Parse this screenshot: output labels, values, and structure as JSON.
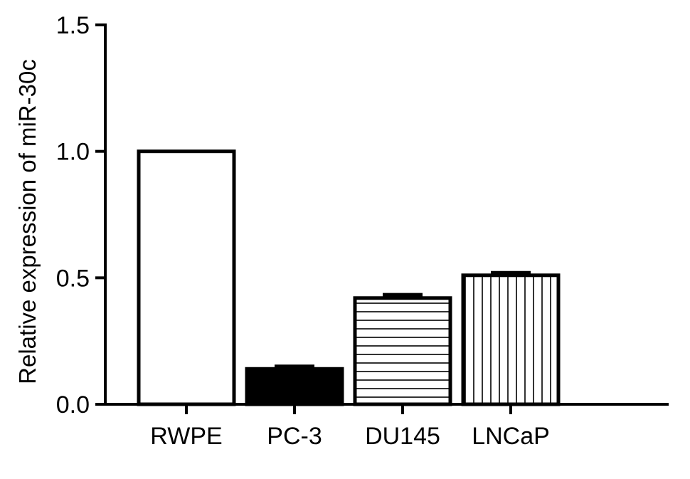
{
  "chart_data": {
    "type": "bar",
    "title": "",
    "xlabel": "",
    "ylabel": "Relative expression of miR-30c",
    "ylim": [
      0,
      1.5
    ],
    "yticks": [
      0.0,
      0.5,
      1.0,
      1.5
    ],
    "ytick_labels": [
      "0.0",
      "0.5",
      "1.0",
      "1.5"
    ],
    "categories": [
      "RWPE",
      "PC-3",
      "DU145",
      "LNCaP"
    ],
    "values": [
      1.0,
      0.14,
      0.42,
      0.51
    ],
    "errors": [
      0.0,
      0.01,
      0.013,
      0.01
    ],
    "fills": [
      "open",
      "solid",
      "horizontal-lines",
      "vertical-lines"
    ],
    "grid": false,
    "legend": "none",
    "colors": {
      "stroke": "#000000",
      "background": "#ffffff"
    }
  }
}
